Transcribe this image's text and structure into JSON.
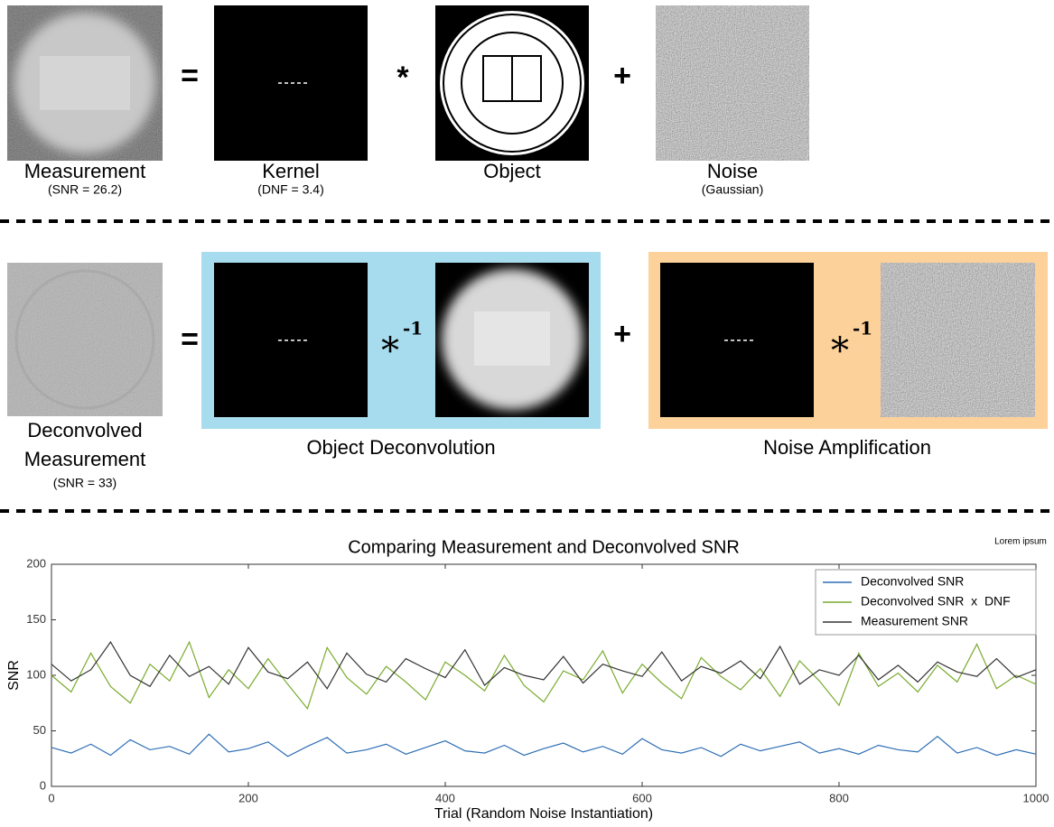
{
  "row1": {
    "measurement": {
      "label": "Measurement",
      "note": "(SNR = 26.2)"
    },
    "kernel": {
      "label": "Kernel",
      "note": "(DNF = 3.4)"
    },
    "object": {
      "label": "Object"
    },
    "noise": {
      "label": "Noise",
      "note": "(Gaussian)"
    },
    "operators": [
      "=",
      "*",
      "+"
    ]
  },
  "row2": {
    "deconvolved": {
      "label": [
        "Deconvolved",
        "Measurement"
      ],
      "note": "(SNR = 33)"
    },
    "operators": [
      "=",
      "+"
    ],
    "inverse": {
      "symbol": "*",
      "exponent": "-1"
    },
    "groups": [
      "Object Deconvolution",
      "Noise Amplification"
    ]
  },
  "corner_note": "Lorem ipsum",
  "chart_data": {
    "type": "line",
    "title": "Comparing Measurement and Deconvolved SNR",
    "x_label": "Trial (Random Noise Instantiation)",
    "y_label": "SNR",
    "x": [
      0,
      20,
      40,
      60,
      80,
      100,
      120,
      140,
      160,
      180,
      200,
      220,
      240,
      260,
      280,
      300,
      320,
      340,
      360,
      380,
      400,
      420,
      440,
      460,
      480,
      500,
      520,
      540,
      560,
      580,
      600,
      620,
      640,
      660,
      680,
      700,
      720,
      740,
      760,
      780,
      800,
      820,
      840,
      860,
      880,
      900,
      920,
      940,
      960,
      980,
      1000
    ],
    "series": [
      {
        "name": "Deconvolved SNR",
        "color": "#2e6fb5",
        "values": [
          35,
          30,
          38,
          28,
          42,
          33,
          36,
          29,
          47,
          31,
          34,
          40,
          27,
          36,
          44,
          30,
          33,
          38,
          29,
          35,
          41,
          32,
          30,
          37,
          28,
          34,
          39,
          31,
          36,
          29,
          43,
          33,
          30,
          35,
          27,
          38,
          32,
          36,
          40,
          30,
          34,
          29,
          37,
          33,
          31,
          45,
          30,
          35,
          28,
          33,
          29
        ]
      },
      {
        "name": "Deconvolved SNR  x  DNF",
        "color": "#7aab2e",
        "values": [
          100,
          85,
          120,
          90,
          75,
          110,
          95,
          130,
          80,
          105,
          88,
          115,
          92,
          70,
          125,
          98,
          83,
          108,
          94,
          78,
          112,
          100,
          86,
          118,
          91,
          76,
          104,
          96,
          122,
          84,
          110,
          93,
          79,
          116,
          99,
          87,
          106,
          81,
          113,
          95,
          73,
          120,
          90,
          102,
          85,
          109,
          94,
          128,
          88,
          100,
          92
        ]
      },
      {
        "name": "Measurement SNR",
        "color": "#333333",
        "values": [
          110,
          95,
          105,
          130,
          100,
          90,
          118,
          99,
          108,
          92,
          125,
          103,
          97,
          112,
          88,
          120,
          101,
          94,
          115,
          106,
          98,
          123,
          91,
          107,
          100,
          96,
          117,
          93,
          110,
          104,
          99,
          121,
          95,
          108,
          102,
          113,
          97,
          126,
          92,
          105,
          100,
          118,
          96,
          109,
          94,
          112,
          103,
          99,
          115,
          98,
          105
        ]
      }
    ],
    "xlim": [
      0,
      1000
    ],
    "ylim": [
      0,
      200
    ],
    "xticks": [
      0,
      200,
      400,
      600,
      800,
      1000
    ],
    "yticks": [
      0,
      50,
      100,
      150,
      200
    ],
    "legend": "upper right",
    "grid": false
  }
}
